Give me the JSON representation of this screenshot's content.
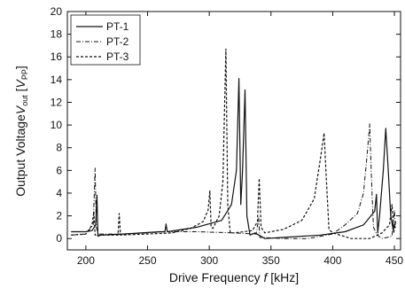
{
  "chart_data": {
    "type": "line",
    "title": "",
    "xlabel": {
      "text": "Drive Frequency ",
      "var": "f",
      "unit": " [kHz]"
    },
    "ylabel": {
      "text": "Output Voltage",
      "var": "V",
      "sub": "out",
      "unit_open": " [",
      "unit_var": "V",
      "unit_sub": "PP",
      "unit_close": "]"
    },
    "xlim": [
      185,
      455
    ],
    "ylim": [
      -1,
      20
    ],
    "x_ticks": [
      200,
      250,
      300,
      350,
      400,
      450
    ],
    "y_ticks": [
      0,
      2,
      4,
      6,
      8,
      10,
      12,
      14,
      16,
      18,
      20
    ],
    "grid": false,
    "legend_position": "top-left",
    "series": [
      {
        "name": "PT-1",
        "style": "solid",
        "points": [
          [
            188,
            0.6
          ],
          [
            200,
            0.6
          ],
          [
            205,
            0.7
          ],
          [
            208,
            1.2
          ],
          [
            209,
            3.8
          ],
          [
            209.8,
            0.2
          ],
          [
            212,
            0.3
          ],
          [
            230,
            0.4
          ],
          [
            260,
            0.6
          ],
          [
            264,
            0.6
          ],
          [
            265,
            1.2
          ],
          [
            266,
            0.6
          ],
          [
            290,
            1.0
          ],
          [
            310,
            1.6
          ],
          [
            318,
            3.0
          ],
          [
            322,
            6.0
          ],
          [
            324,
            14.1
          ],
          [
            325.5,
            3.0
          ],
          [
            327,
            6.0
          ],
          [
            329,
            13.1
          ],
          [
            330.5,
            2.0
          ],
          [
            333,
            0.3
          ],
          [
            337,
            0.5
          ],
          [
            345,
            0.0
          ],
          [
            360,
            0.1
          ],
          [
            390,
            0.3
          ],
          [
            410,
            0.6
          ],
          [
            425,
            1.2
          ],
          [
            434,
            2.4
          ],
          [
            435.5,
            3.9
          ],
          [
            436.5,
            0.5
          ],
          [
            438,
            2.0
          ],
          [
            441,
            6.0
          ],
          [
            443,
            9.7
          ],
          [
            445,
            6.0
          ],
          [
            447,
            2.0
          ],
          [
            449,
            0.8
          ],
          [
            451,
            1.5
          ]
        ]
      },
      {
        "name": "PT-2",
        "style": "dashdot",
        "points": [
          [
            188,
            0.3
          ],
          [
            200,
            0.4
          ],
          [
            206,
            1.2
          ],
          [
            207.5,
            6.2
          ],
          [
            208.5,
            1.0
          ],
          [
            210,
            0.4
          ],
          [
            230,
            0.4
          ],
          [
            250,
            0.5
          ],
          [
            264,
            0.6
          ],
          [
            265,
            1.3
          ],
          [
            266,
            0.6
          ],
          [
            290,
            0.6
          ],
          [
            320,
            0.5
          ],
          [
            338,
            0.4
          ],
          [
            340,
            1.8
          ],
          [
            341,
            0.1
          ],
          [
            360,
            0.0
          ],
          [
            380,
            0.0
          ],
          [
            400,
            0.4
          ],
          [
            410,
            1.2
          ],
          [
            420,
            2.2
          ],
          [
            425,
            4.0
          ],
          [
            428,
            7.5
          ],
          [
            430,
            10.1
          ],
          [
            431.5,
            5.0
          ],
          [
            433,
            1.0
          ],
          [
            436,
            0.3
          ],
          [
            440,
            0.0
          ],
          [
            448,
            0.2
          ],
          [
            450,
            2.5
          ],
          [
            451,
            0.8
          ]
        ]
      },
      {
        "name": "PT-3",
        "style": "dashed",
        "points": [
          [
            188,
            0.3
          ],
          [
            200,
            0.4
          ],
          [
            205,
            1.2
          ],
          [
            206.5,
            2.4
          ],
          [
            207.5,
            0.3
          ],
          [
            210,
            0.3
          ],
          [
            226,
            0.3
          ],
          [
            227,
            2.2
          ],
          [
            228,
            0.3
          ],
          [
            250,
            0.4
          ],
          [
            270,
            0.5
          ],
          [
            285,
            0.9
          ],
          [
            295,
            1.5
          ],
          [
            299,
            2.5
          ],
          [
            300.5,
            4.2
          ],
          [
            301.5,
            1.0
          ],
          [
            303,
            0.9
          ],
          [
            308,
            2.0
          ],
          [
            311,
            5.0
          ],
          [
            313.5,
            16.7
          ],
          [
            315,
            3.0
          ],
          [
            317,
            0.5
          ],
          [
            320,
            0.5
          ],
          [
            328,
            0.6
          ],
          [
            335,
            0.7
          ],
          [
            339,
            1.5
          ],
          [
            340.5,
            5.3
          ],
          [
            342,
            1.0
          ],
          [
            345,
            0.5
          ],
          [
            360,
            0.8
          ],
          [
            375,
            1.6
          ],
          [
            385,
            3.5
          ],
          [
            390,
            7.0
          ],
          [
            393,
            9.3
          ],
          [
            395,
            5.0
          ],
          [
            397,
            0.8
          ],
          [
            400,
            0.5
          ],
          [
            415,
            0.0
          ],
          [
            430,
            0.0
          ],
          [
            440,
            0.5
          ],
          [
            446,
            1.2
          ],
          [
            448,
            3.0
          ],
          [
            449.5,
            0.5
          ],
          [
            451,
            1.5
          ]
        ]
      }
    ]
  }
}
